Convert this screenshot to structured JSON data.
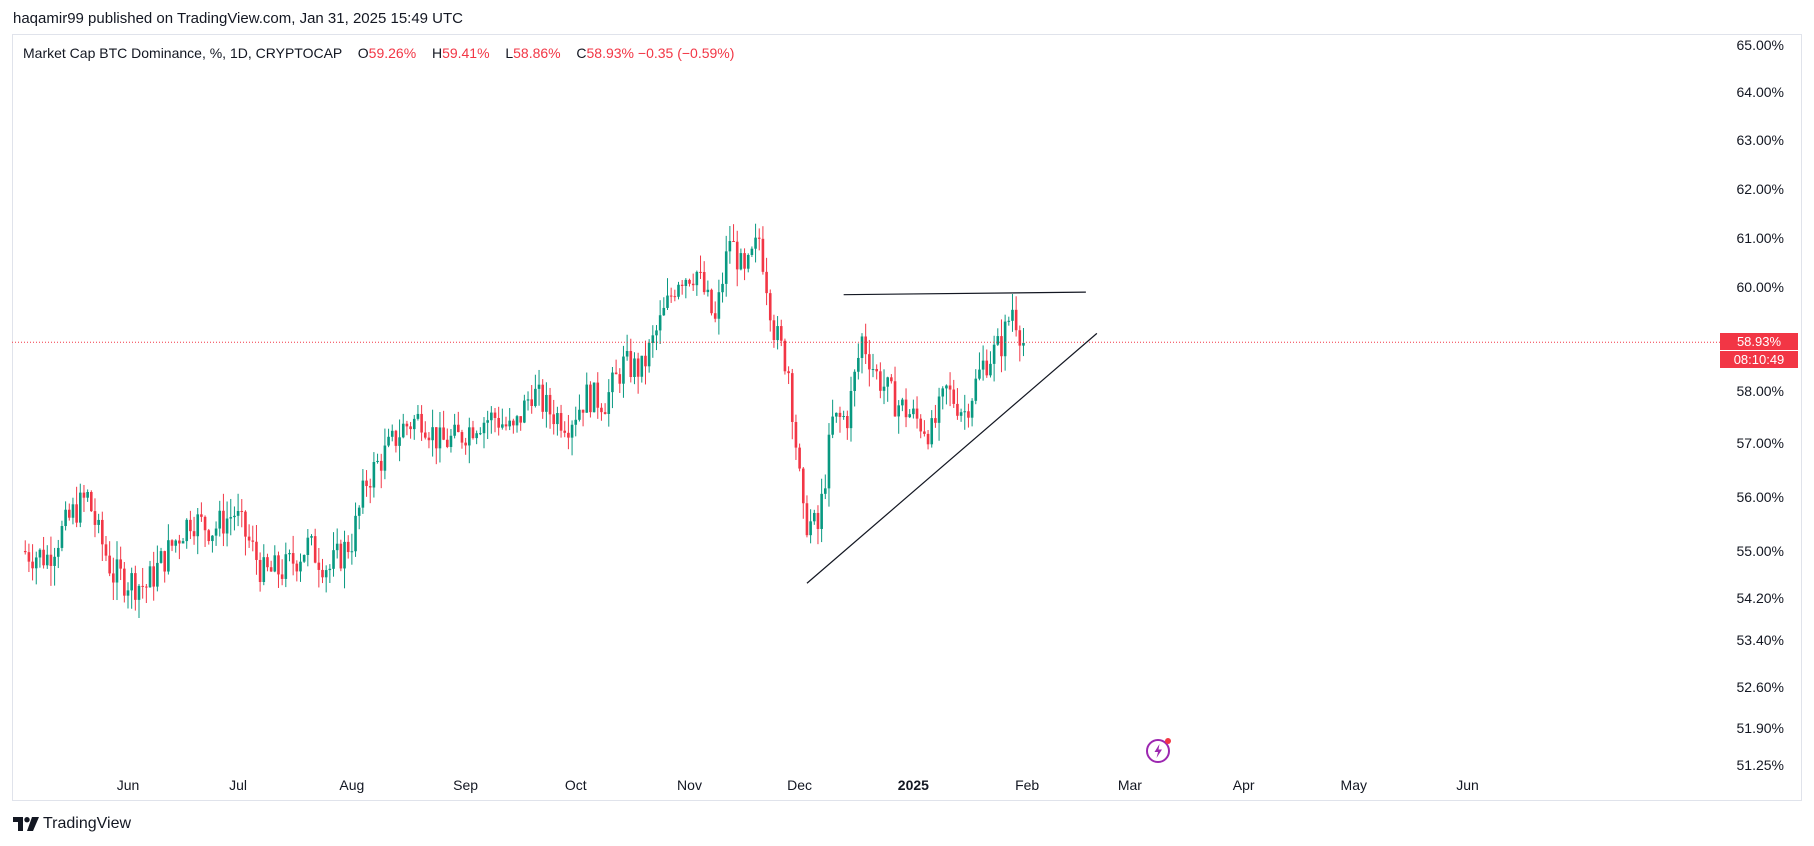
{
  "header": {
    "published": "haqamir99 published on TradingView.com, Jan 31, 2025 15:49 UTC"
  },
  "legend": {
    "symbol": "Market Cap BTC Dominance, %, 1D, CRYPTOCAP",
    "open_label": "O",
    "open": "59.26%",
    "high_label": "H",
    "high": "59.41%",
    "low_label": "L",
    "low": "58.86%",
    "close_label": "C",
    "close": "58.93%",
    "change": "−0.35 (−0.59%)"
  },
  "price_badge": {
    "price": "58.93%",
    "countdown": "08:10:49"
  },
  "footer": {
    "brand": "TradingView"
  },
  "colors": {
    "up": "#089981",
    "down": "#f23645",
    "line": "#131722",
    "grid_border": "#e0e3eb"
  },
  "icons": {
    "live": "lightning-icon",
    "brand": "tradingview-logo-icon"
  },
  "chart_data": {
    "type": "candlestick",
    "symbol": "CRYPTOCAP:BTC.D",
    "interval": "1D",
    "y_axis": {
      "scale": "log",
      "ticks": [
        "65.00%",
        "64.00%",
        "63.00%",
        "62.00%",
        "61.00%",
        "60.00%",
        "58.00%",
        "57.00%",
        "56.00%",
        "55.00%",
        "54.20%",
        "53.40%",
        "52.60%",
        "51.90%",
        "51.25%"
      ],
      "tick_values": [
        65.0,
        64.0,
        63.0,
        62.0,
        61.0,
        60.0,
        58.0,
        57.0,
        56.0,
        55.0,
        54.2,
        53.4,
        52.6,
        51.9,
        51.25
      ]
    },
    "x_axis": {
      "ticks": [
        "Jun",
        "Jul",
        "Aug",
        "Sep",
        "Oct",
        "Nov",
        "Dec",
        "2025",
        "Feb",
        "Mar",
        "Apr",
        "May",
        "Jun"
      ],
      "tick_dates": [
        "2024-06-01",
        "2024-07-01",
        "2024-08-01",
        "2024-09-01",
        "2024-10-01",
        "2024-11-01",
        "2024-12-01",
        "2025-01-01",
        "2025-02-01",
        "2025-03-01",
        "2025-04-01",
        "2025-05-01",
        "2025-06-01"
      ],
      "range": [
        "2024-05-03",
        "2025-06-12"
      ]
    },
    "last_price": 58.93,
    "candles_close": [
      {
        "date": "2024-05-03",
        "close": 55.0
      },
      {
        "date": "2024-05-10",
        "close": 54.9
      },
      {
        "date": "2024-05-17",
        "close": 55.7
      },
      {
        "date": "2024-05-21",
        "close": 56.0
      },
      {
        "date": "2024-05-24",
        "close": 55.3
      },
      {
        "date": "2024-05-28",
        "close": 54.6
      },
      {
        "date": "2024-06-01",
        "close": 54.5
      },
      {
        "date": "2024-06-06",
        "close": 54.4
      },
      {
        "date": "2024-06-12",
        "close": 55.0
      },
      {
        "date": "2024-06-18",
        "close": 55.6
      },
      {
        "date": "2024-06-24",
        "close": 55.4
      },
      {
        "date": "2024-06-30",
        "close": 55.7
      },
      {
        "date": "2024-07-03",
        "close": 55.3
      },
      {
        "date": "2024-07-08",
        "close": 54.6
      },
      {
        "date": "2024-07-14",
        "close": 54.7
      },
      {
        "date": "2024-07-20",
        "close": 55.1
      },
      {
        "date": "2024-07-26",
        "close": 54.7
      },
      {
        "date": "2024-08-01",
        "close": 55.2
      },
      {
        "date": "2024-08-05",
        "close": 56.3
      },
      {
        "date": "2024-08-10",
        "close": 56.8
      },
      {
        "date": "2024-08-15",
        "close": 57.3
      },
      {
        "date": "2024-08-20",
        "close": 57.5
      },
      {
        "date": "2024-08-25",
        "close": 57.0
      },
      {
        "date": "2024-08-30",
        "close": 57.1
      },
      {
        "date": "2024-09-04",
        "close": 57.4
      },
      {
        "date": "2024-09-09",
        "close": 57.5
      },
      {
        "date": "2024-09-14",
        "close": 57.2
      },
      {
        "date": "2024-09-19",
        "close": 58.0
      },
      {
        "date": "2024-09-24",
        "close": 57.6
      },
      {
        "date": "2024-09-29",
        "close": 57.4
      },
      {
        "date": "2024-10-04",
        "close": 57.9
      },
      {
        "date": "2024-10-09",
        "close": 57.8
      },
      {
        "date": "2024-10-14",
        "close": 58.5
      },
      {
        "date": "2024-10-19",
        "close": 58.4
      },
      {
        "date": "2024-10-24",
        "close": 59.3
      },
      {
        "date": "2024-10-29",
        "close": 60.2
      },
      {
        "date": "2024-11-03",
        "close": 60.3
      },
      {
        "date": "2024-11-08",
        "close": 59.3
      },
      {
        "date": "2024-11-12",
        "close": 61.0
      },
      {
        "date": "2024-11-16",
        "close": 60.2
      },
      {
        "date": "2024-11-20",
        "close": 61.0
      },
      {
        "date": "2024-11-24",
        "close": 59.2
      },
      {
        "date": "2024-11-28",
        "close": 58.4
      },
      {
        "date": "2024-12-02",
        "close": 55.6
      },
      {
        "date": "2024-12-06",
        "close": 55.4
      },
      {
        "date": "2024-12-10",
        "close": 57.4
      },
      {
        "date": "2024-12-14",
        "close": 57.5
      },
      {
        "date": "2024-12-18",
        "close": 59.0
      },
      {
        "date": "2024-12-22",
        "close": 58.3
      },
      {
        "date": "2024-12-27",
        "close": 57.8
      },
      {
        "date": "2025-01-01",
        "close": 57.5
      },
      {
        "date": "2025-01-06",
        "close": 57.2
      },
      {
        "date": "2025-01-10",
        "close": 58.0
      },
      {
        "date": "2025-01-15",
        "close": 57.6
      },
      {
        "date": "2025-01-20",
        "close": 58.5
      },
      {
        "date": "2025-01-25",
        "close": 58.9
      },
      {
        "date": "2025-01-28",
        "close": 59.6
      },
      {
        "date": "2025-01-31",
        "close": 58.93
      }
    ],
    "drawings": [
      {
        "type": "horizontal_resistance",
        "start": {
          "date": "2024-12-13",
          "value": 59.85
        },
        "end": {
          "date": "2025-02-17",
          "value": 59.9
        }
      },
      {
        "type": "ascending_support",
        "start": {
          "date": "2024-12-03",
          "value": 54.45
        },
        "end": {
          "date": "2025-02-20",
          "value": 59.1
        }
      }
    ]
  }
}
